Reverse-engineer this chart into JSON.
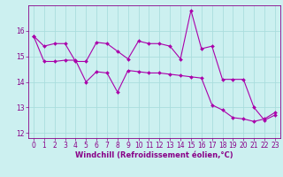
{
  "line1_x": [
    0,
    1,
    2,
    3,
    4,
    5,
    6,
    7,
    8,
    9,
    10,
    11,
    12,
    13,
    14,
    15,
    16,
    17,
    18,
    19,
    20,
    21,
    22,
    23
  ],
  "line1_y": [
    15.8,
    15.4,
    15.5,
    15.5,
    14.8,
    14.8,
    15.55,
    15.5,
    15.2,
    14.9,
    15.6,
    15.5,
    15.5,
    15.4,
    14.9,
    16.8,
    15.3,
    15.4,
    14.1,
    14.1,
    14.1,
    13.0,
    12.5,
    12.7
  ],
  "line2_x": [
    0,
    1,
    2,
    3,
    4,
    5,
    6,
    7,
    8,
    9,
    10,
    11,
    12,
    13,
    14,
    15,
    16,
    17,
    18,
    19,
    20,
    21,
    22,
    23
  ],
  "line2_y": [
    15.8,
    14.8,
    14.8,
    14.85,
    14.85,
    14.0,
    14.4,
    14.35,
    13.6,
    14.45,
    14.4,
    14.35,
    14.35,
    14.3,
    14.25,
    14.2,
    14.15,
    13.1,
    12.9,
    12.6,
    12.55,
    12.45,
    12.55,
    12.8
  ],
  "line_color": "#aa00aa",
  "bg_color": "#ccf0f0",
  "grid_color": "#aadddd",
  "xlim": [
    -0.5,
    23.5
  ],
  "ylim": [
    11.8,
    17.0
  ],
  "yticks": [
    12,
    13,
    14,
    15,
    16
  ],
  "xticks": [
    0,
    1,
    2,
    3,
    4,
    5,
    6,
    7,
    8,
    9,
    10,
    11,
    12,
    13,
    14,
    15,
    16,
    17,
    18,
    19,
    20,
    21,
    22,
    23
  ],
  "xlabel": "Windchill (Refroidissement éolien,°C)",
  "marker": "D",
  "markersize": 2.0,
  "linewidth": 0.8,
  "font_color": "#880088",
  "tick_fontsize": 5.5,
  "xlabel_fontsize": 6.0
}
